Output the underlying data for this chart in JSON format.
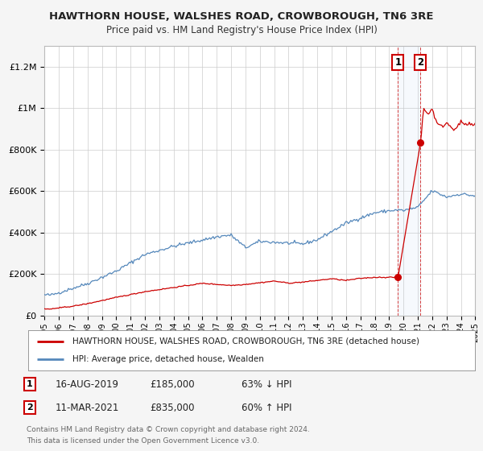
{
  "title": "HAWTHORN HOUSE, WALSHES ROAD, CROWBOROUGH, TN6 3RE",
  "subtitle": "Price paid vs. HM Land Registry's House Price Index (HPI)",
  "legend_line1": "HAWTHORN HOUSE, WALSHES ROAD, CROWBOROUGH, TN6 3RE (detached house)",
  "legend_line2": "HPI: Average price, detached house, Wealden",
  "footer1": "Contains HM Land Registry data © Crown copyright and database right 2024.",
  "footer2": "This data is licensed under the Open Government Licence v3.0.",
  "marker1_date": "16-AUG-2019",
  "marker1_price": "£185,000",
  "marker1_hpi": "63% ↓ HPI",
  "marker2_date": "11-MAR-2021",
  "marker2_price": "£835,000",
  "marker2_hpi": "60% ↑ HPI",
  "red_color": "#cc0000",
  "blue_color": "#5588bb",
  "background_color": "#f5f5f5",
  "plot_bg_color": "#ffffff",
  "grid_color": "#cccccc",
  "marker1_x": 2019.62,
  "marker2_x": 2021.19,
  "marker1_y_red": 185000,
  "marker2_y_red": 835000,
  "ylim_max": 1300000,
  "xlim_min": 1995,
  "xlim_max": 2025,
  "yticks": [
    0,
    200000,
    400000,
    600000,
    800000,
    1000000,
    1200000
  ],
  "ylabels": [
    "£0",
    "£200K",
    "£400K",
    "£600K",
    "£800K",
    "£1M",
    "£1.2M"
  ]
}
